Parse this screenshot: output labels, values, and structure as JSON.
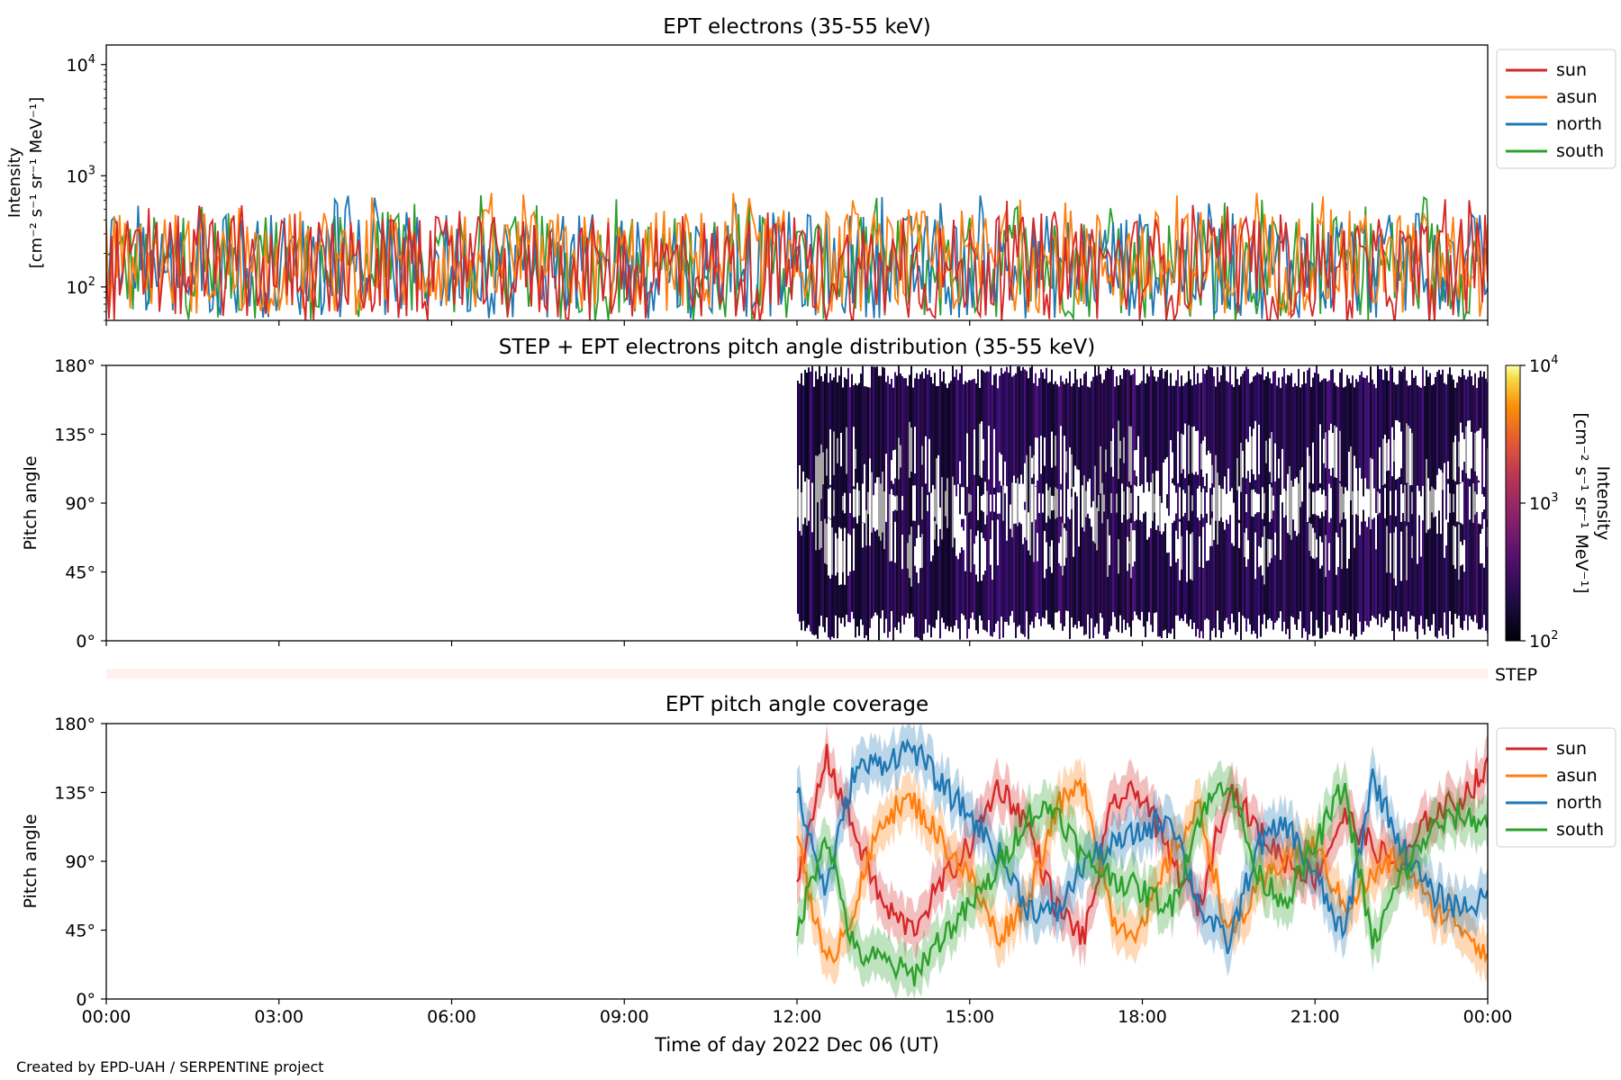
{
  "footer": {
    "credit": "Created by EPD-UAH / SERPENTINE project"
  },
  "xaxis": {
    "label": "Time of day 2022 Dec 06 (UT)",
    "ticks": [
      "00:00",
      "03:00",
      "06:00",
      "09:00",
      "12:00",
      "15:00",
      "18:00",
      "21:00",
      "00:00"
    ],
    "range_hours": [
      0,
      24
    ]
  },
  "series_colors": {
    "sun": "#d62728",
    "asun": "#ff7f0e",
    "north": "#1f77b4",
    "south": "#2ca02c"
  },
  "chart_data": [
    {
      "type": "line",
      "title": "EPT electrons (35-55 keV)",
      "ylabel": "Intensity",
      "yunit": "[cm⁻² s⁻¹ sr⁻¹ MeV⁻¹]",
      "yscale": "log",
      "ylim": [
        50,
        15000
      ],
      "yticks": [
        {
          "base": "10",
          "exp": "2"
        },
        {
          "base": "10",
          "exp": "3"
        },
        {
          "base": "10",
          "exp": "4"
        }
      ],
      "legend": {
        "placement": "outside-top-right",
        "entries": [
          "sun",
          "asun",
          "north",
          "south"
        ]
      },
      "noise": {
        "x_start": 0,
        "x_end": 24,
        "baseline": 130,
        "peak_max": 700
      },
      "series": [
        {
          "name": "sun",
          "x": [
            0,
            2,
            4,
            6,
            8,
            10,
            12,
            14,
            16,
            18,
            20,
            22,
            24
          ],
          "values": [
            140,
            150,
            135,
            145,
            140,
            150,
            135,
            140,
            145,
            150,
            140,
            135,
            145
          ]
        },
        {
          "name": "asun",
          "x": [
            0,
            2,
            4,
            6,
            8,
            10,
            12,
            14,
            16,
            18,
            20,
            22,
            24
          ],
          "values": [
            160,
            170,
            165,
            175,
            160,
            170,
            165,
            170,
            175,
            165,
            170,
            165,
            160
          ]
        },
        {
          "name": "north",
          "x": [
            0,
            2,
            4,
            6,
            8,
            10,
            12,
            14,
            16,
            18,
            20,
            22,
            24
          ],
          "values": [
            150,
            160,
            155,
            160,
            150,
            155,
            160,
            155,
            150,
            160,
            155,
            150,
            155
          ]
        },
        {
          "name": "south",
          "x": [
            0,
            2,
            4,
            6,
            8,
            10,
            12,
            14,
            16,
            18,
            20,
            22,
            24
          ],
          "values": [
            145,
            155,
            150,
            155,
            145,
            150,
            150,
            145,
            155,
            150,
            145,
            150,
            150
          ]
        }
      ]
    },
    {
      "type": "heatmap",
      "title": "STEP + EPT electrons pitch angle distribution (35-55 keV)",
      "ylabel": "Pitch angle",
      "yticks": [
        "0°",
        "45°",
        "90°",
        "135°",
        "180°"
      ],
      "ylim": [
        0,
        180
      ],
      "data_start_hours": 12,
      "colorbar": {
        "label": "Intensity",
        "unit": "[cm⁻² s⁻¹ sr⁻¹ MeV⁻¹]",
        "scale": "log",
        "range": [
          100,
          10000
        ],
        "ticks": [
          {
            "base": "10",
            "exp": "2"
          },
          {
            "base": "10",
            "exp": "3"
          },
          {
            "base": "10",
            "exp": "4"
          }
        ],
        "colormap": "inferno"
      }
    },
    {
      "type": "heatmap",
      "label": "STEP",
      "color": "#fff1ec"
    },
    {
      "type": "line",
      "title": "EPT pitch angle coverage",
      "ylabel": "Pitch angle",
      "yticks": [
        "0°",
        "45°",
        "90°",
        "135°",
        "180°"
      ],
      "ylim": [
        0,
        180
      ],
      "legend": {
        "placement": "outside-top-right",
        "entries": [
          "sun",
          "asun",
          "north",
          "south"
        ]
      },
      "x": [
        12,
        12.5,
        13,
        13.5,
        14,
        14.5,
        15,
        15.5,
        16,
        16.5,
        17,
        17.5,
        18,
        18.5,
        19,
        19.5,
        20,
        20.5,
        21,
        21.5,
        22,
        22.5,
        23,
        23.5,
        24
      ],
      "series": [
        {
          "name": "sun",
          "values": [
            70,
            160,
            110,
            60,
            45,
            75,
            100,
            140,
            115,
            60,
            40,
            130,
            135,
            90,
            60,
            140,
            110,
            90,
            80,
            120,
            100,
            85,
            120,
            130,
            150
          ]
        },
        {
          "name": "asun",
          "values": [
            110,
            20,
            60,
            120,
            130,
            105,
            80,
            40,
            65,
            125,
            140,
            50,
            45,
            95,
            125,
            40,
            70,
            95,
            100,
            60,
            80,
            95,
            60,
            50,
            30
          ]
        },
        {
          "name": "north",
          "values": [
            135,
            70,
            150,
            155,
            165,
            140,
            120,
            95,
            60,
            55,
            90,
            100,
            110,
            120,
            60,
            35,
            100,
            115,
            80,
            40,
            145,
            100,
            70,
            60,
            65
          ]
        },
        {
          "name": "south",
          "values": [
            45,
            110,
            30,
            25,
            15,
            40,
            60,
            85,
            120,
            125,
            90,
            80,
            70,
            60,
            120,
            145,
            80,
            65,
            100,
            140,
            35,
            80,
            110,
            120,
            115
          ]
        }
      ],
      "band_halfwidth_deg": 15
    }
  ]
}
